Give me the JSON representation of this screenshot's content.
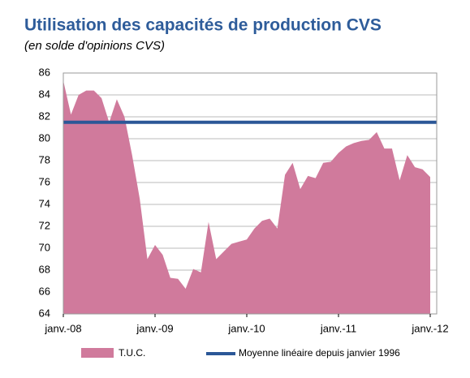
{
  "chart_data": {
    "type": "area",
    "title": "Utilisation des capacités de production CVS",
    "subtitle": "(en solde d'opinions CVS)",
    "categories": [
      "janv.-08",
      null,
      null,
      null,
      null,
      null,
      null,
      null,
      null,
      null,
      null,
      null,
      "janv.-09",
      null,
      null,
      null,
      null,
      null,
      null,
      null,
      null,
      null,
      null,
      null,
      "janv.-10",
      null,
      null,
      null,
      null,
      null,
      null,
      null,
      null,
      null,
      null,
      null,
      "janv.-11",
      null,
      null,
      null,
      null,
      null,
      null,
      null,
      null,
      null,
      null,
      null,
      "janv.-12"
    ],
    "series": [
      {
        "name": "T.U.C.",
        "color": "#d07a9c",
        "values": [
          85.3,
          82.2,
          84.0,
          84.4,
          84.4,
          83.7,
          81.5,
          83.6,
          82.0,
          78.5,
          74.5,
          69.0,
          70.3,
          69.4,
          67.3,
          67.2,
          66.3,
          68.1,
          67.8,
          72.4,
          69.0,
          69.7,
          70.4,
          70.6,
          70.8,
          71.8,
          72.5,
          72.7,
          71.8,
          76.7,
          77.8,
          75.4,
          76.6,
          76.4,
          77.8,
          77.9,
          78.7,
          79.3,
          79.6,
          79.8,
          79.9,
          80.6,
          79.1,
          79.1,
          76.2,
          78.5,
          77.4,
          77.2,
          76.5
        ]
      }
    ],
    "reference_lines": [
      {
        "name": "Moyenne linéaire depuis janvier 1996",
        "value": 81.5,
        "color": "#2b5797"
      }
    ],
    "ylim": [
      64,
      86
    ],
    "yticks": [
      64,
      66,
      68,
      70,
      72,
      74,
      76,
      78,
      80,
      82,
      84,
      86
    ],
    "grid": true
  }
}
